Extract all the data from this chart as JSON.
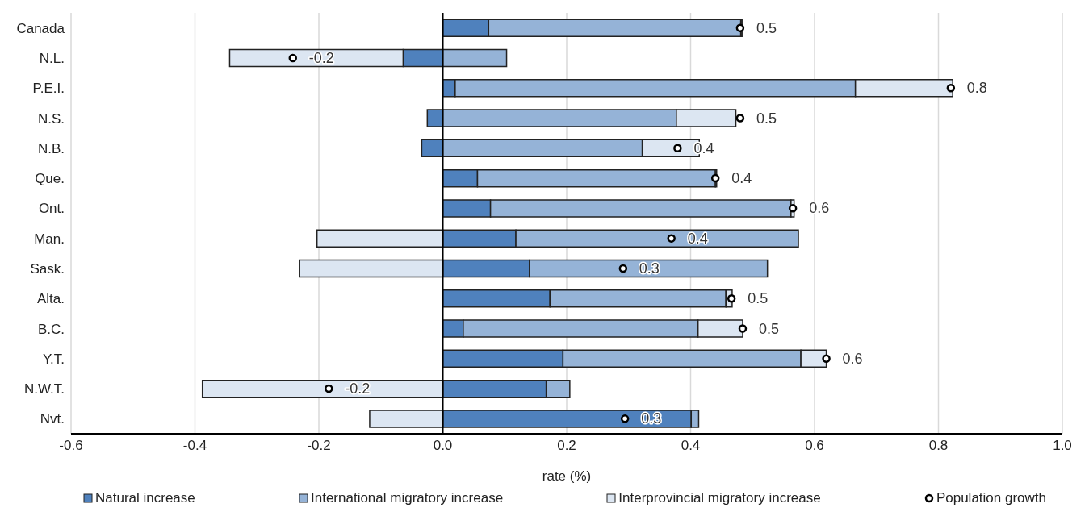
{
  "chart_data": {
    "type": "bar",
    "orientation": "horizontal",
    "stacked": true,
    "categories": [
      "Canada",
      "N.L.",
      "P.E.I.",
      "N.S.",
      "N.B.",
      "Que.",
      "Ont.",
      "Man.",
      "Sask.",
      "Alta.",
      "B.C.",
      "Y.T.",
      "N.W.T.",
      "Nvt."
    ],
    "series": [
      {
        "name": "Natural increase",
        "color": "#4f81bd",
        "values": [
          0.074,
          -0.064,
          0.02,
          -0.025,
          -0.034,
          0.056,
          0.077,
          0.118,
          0.14,
          0.173,
          0.033,
          0.194,
          0.167,
          0.401
        ]
      },
      {
        "name": "International migratory increase",
        "color": "#95b3d7",
        "values": [
          0.407,
          0.103,
          0.646,
          0.377,
          0.322,
          0.384,
          0.485,
          0.456,
          0.384,
          0.284,
          0.379,
          0.384,
          0.038,
          0.012
        ]
      },
      {
        "name": "Interprovincial migratory increase",
        "color": "#dce6f2",
        "values": [
          0.002,
          -0.28,
          0.157,
          0.096,
          0.092,
          0.002,
          0.005,
          -0.203,
          -0.231,
          0.01,
          0.072,
          0.041,
          -0.388,
          -0.118
        ]
      },
      {
        "name": "Population growth",
        "type": "scatter",
        "color": "#ffffff",
        "marker": "circle",
        "x": [
          "Canada",
          "N.L.",
          "P.E.I.",
          "N.S.",
          "N.B.",
          "Que.",
          "Ont.",
          "Man.",
          "Sask.",
          "Alta.",
          "B.C.",
          "Y.T.",
          "N.W.T.",
          "Nvt."
        ],
        "values": [
          0.48,
          -0.242,
          0.82,
          0.48,
          0.379,
          0.44,
          0.565,
          0.369,
          0.291,
          0.466,
          0.484,
          0.619,
          -0.184,
          0.294
        ],
        "value_labels": [
          "0.5",
          "-0.2",
          "0.8",
          "0.5",
          "0.4",
          "0.4",
          "0.6",
          "0.4",
          "0.3",
          "0.5",
          "0.5",
          "0.6",
          "-0.2",
          "0.3"
        ]
      }
    ],
    "xlabel": "rate (%)",
    "xlim": [
      -0.6,
      1.0
    ],
    "xticks": [
      -0.6,
      -0.4,
      -0.2,
      {
        "value": 0,
        "label": "0.0"
      },
      0.2,
      0.4,
      0.6,
      0.8,
      {
        "value": 1,
        "label": "1.0"
      }
    ],
    "ref_lines": [
      {
        "axis": "x",
        "value": 0,
        "color": "#000000"
      }
    ],
    "grid": "x",
    "legend": "bottom"
  }
}
